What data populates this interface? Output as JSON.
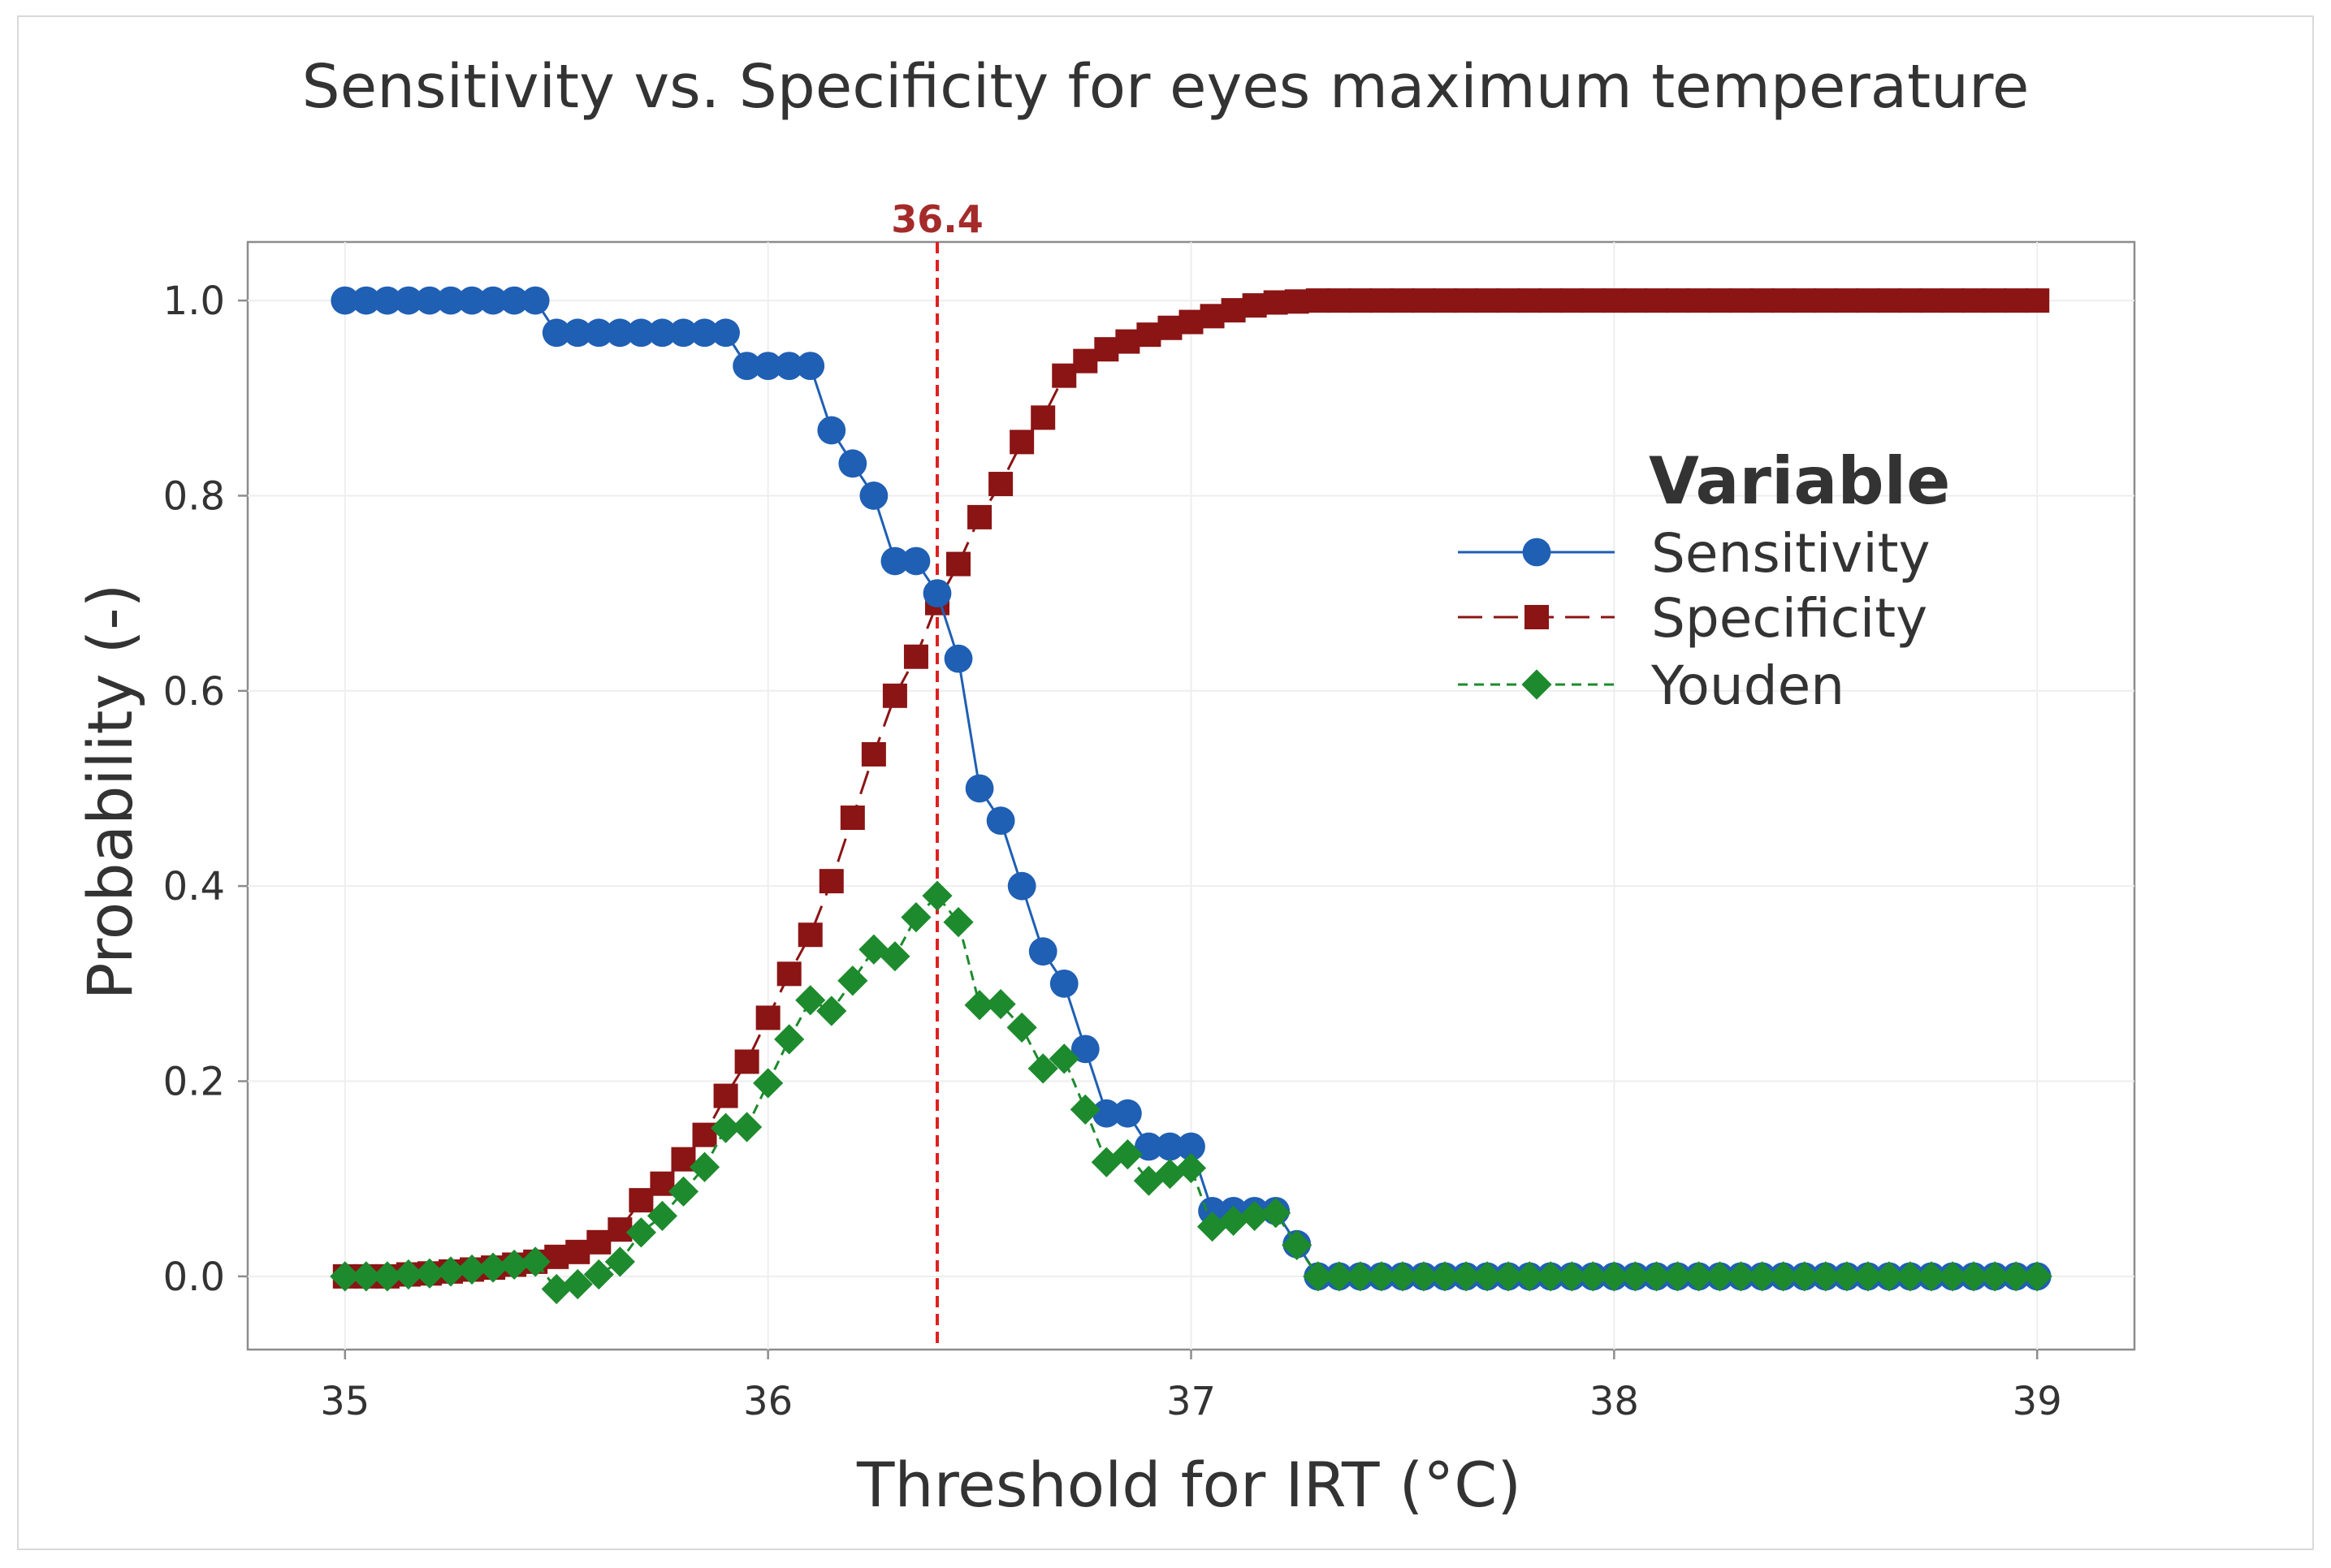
{
  "colors": {
    "sensitivity": "#1f5fb4",
    "specificity": "#8b1414",
    "youden": "#1e8a2e",
    "cutoff": "#e02020",
    "cutoff_label": "#a52a2a",
    "text": "#333333",
    "axis": "#8c8c8c",
    "grid": "#eeeeee"
  },
  "chart_data": {
    "type": "line",
    "title": "Sensitivity vs. Specificity for eyes maximum temperature",
    "xlabel": "Threshold for IRT (°C)",
    "ylabel": "Probability (-)",
    "xlim": [
      34.77,
      39.23
    ],
    "ylim": [
      -0.075,
      1.06
    ],
    "xticks": [
      35,
      36,
      37,
      38,
      39
    ],
    "xtick_labels": [
      "35",
      "36",
      "37",
      "38",
      "39"
    ],
    "yticks": [
      0.0,
      0.2,
      0.4,
      0.6,
      0.8,
      1.0
    ],
    "ytick_labels": [
      "0.0",
      "0.2",
      "0.4",
      "0.6",
      "0.8",
      "1.0"
    ],
    "grid": true,
    "legend": {
      "title": "Variable",
      "position": "right"
    },
    "reference_line": {
      "x": 36.4,
      "label": "36.4"
    },
    "series": [
      {
        "name": "Sensitivity",
        "marker": "circle",
        "line": "solid",
        "x": [
          35.0,
          35.05,
          35.1,
          35.15,
          35.2,
          35.25,
          35.3,
          35.35,
          35.4,
          35.45,
          35.5,
          35.55,
          35.6,
          35.65,
          35.7,
          35.75,
          35.8,
          35.85,
          35.9,
          35.95,
          36.0,
          36.05,
          36.1,
          36.15,
          36.2,
          36.25,
          36.3,
          36.35,
          36.4,
          36.45,
          36.5,
          36.55,
          36.6,
          36.65,
          36.7,
          36.75,
          36.8,
          36.85,
          36.9,
          36.95,
          37.0,
          37.05,
          37.1,
          37.15,
          37.2,
          37.25,
          37.3,
          37.35,
          37.4,
          37.45,
          37.5,
          37.55,
          37.6,
          37.65,
          37.7,
          37.75,
          37.8,
          37.85,
          37.9,
          37.95,
          38.0,
          38.05,
          38.1,
          38.15,
          38.2,
          38.25,
          38.3,
          38.35,
          38.4,
          38.45,
          38.5,
          38.55,
          38.6,
          38.65,
          38.7,
          38.75,
          38.8,
          38.85,
          38.9,
          38.95,
          39.0
        ],
        "values": [
          1.0,
          1.0,
          1.0,
          1.0,
          1.0,
          1.0,
          1.0,
          1.0,
          1.0,
          1.0,
          0.967,
          0.967,
          0.967,
          0.967,
          0.967,
          0.967,
          0.967,
          0.967,
          0.967,
          0.933,
          0.933,
          0.933,
          0.933,
          0.867,
          0.833,
          0.8,
          0.733,
          0.733,
          0.7,
          0.633,
          0.5,
          0.467,
          0.4,
          0.333,
          0.3,
          0.233,
          0.167,
          0.167,
          0.133,
          0.133,
          0.133,
          0.067,
          0.067,
          0.067,
          0.067,
          0.033,
          0.0,
          0.0,
          0.0,
          0.0,
          0.0,
          0.0,
          0.0,
          0.0,
          0.0,
          0.0,
          0.0,
          0.0,
          0.0,
          0.0,
          0.0,
          0.0,
          0.0,
          0.0,
          0.0,
          0.0,
          0.0,
          0.0,
          0.0,
          0.0,
          0.0,
          0.0,
          0.0,
          0.0,
          0.0,
          0.0,
          0.0,
          0.0,
          0.0,
          0.0,
          0.0
        ]
      },
      {
        "name": "Specificity",
        "marker": "square",
        "line": "long-dash",
        "x": [
          35.0,
          35.05,
          35.1,
          35.15,
          35.2,
          35.25,
          35.3,
          35.35,
          35.4,
          35.45,
          35.5,
          35.55,
          35.6,
          35.65,
          35.7,
          35.75,
          35.8,
          35.85,
          35.9,
          35.95,
          36.0,
          36.05,
          36.1,
          36.15,
          36.2,
          36.25,
          36.3,
          36.35,
          36.4,
          36.45,
          36.5,
          36.55,
          36.6,
          36.65,
          36.7,
          36.75,
          36.8,
          36.85,
          36.9,
          36.95,
          37.0,
          37.05,
          37.1,
          37.15,
          37.2,
          37.25,
          37.3,
          37.35,
          37.4,
          37.45,
          37.5,
          37.55,
          37.6,
          37.65,
          37.7,
          37.75,
          37.8,
          37.85,
          37.9,
          37.95,
          38.0,
          38.05,
          38.1,
          38.15,
          38.2,
          38.25,
          38.3,
          38.35,
          38.4,
          38.45,
          38.5,
          38.55,
          38.6,
          38.65,
          38.7,
          38.75,
          38.8,
          38.85,
          38.9,
          38.95,
          39.0
        ],
        "values": [
          0.0,
          0.0,
          0.0,
          0.002,
          0.003,
          0.005,
          0.007,
          0.009,
          0.012,
          0.015,
          0.02,
          0.025,
          0.035,
          0.048,
          0.078,
          0.095,
          0.12,
          0.145,
          0.185,
          0.22,
          0.265,
          0.31,
          0.35,
          0.405,
          0.47,
          0.535,
          0.595,
          0.635,
          0.69,
          0.73,
          0.778,
          0.812,
          0.855,
          0.88,
          0.923,
          0.938,
          0.95,
          0.958,
          0.965,
          0.972,
          0.978,
          0.984,
          0.99,
          0.995,
          0.998,
          0.999,
          1.0,
          1.0,
          1.0,
          1.0,
          1.0,
          1.0,
          1.0,
          1.0,
          1.0,
          1.0,
          1.0,
          1.0,
          1.0,
          1.0,
          1.0,
          1.0,
          1.0,
          1.0,
          1.0,
          1.0,
          1.0,
          1.0,
          1.0,
          1.0,
          1.0,
          1.0,
          1.0,
          1.0,
          1.0,
          1.0,
          1.0,
          1.0,
          1.0,
          1.0,
          1.0
        ]
      },
      {
        "name": "Youden",
        "marker": "diamond",
        "line": "short-dash",
        "x": [
          35.0,
          35.05,
          35.1,
          35.15,
          35.2,
          35.25,
          35.3,
          35.35,
          35.4,
          35.45,
          35.5,
          35.55,
          35.6,
          35.65,
          35.7,
          35.75,
          35.8,
          35.85,
          35.9,
          35.95,
          36.0,
          36.05,
          36.1,
          36.15,
          36.2,
          36.25,
          36.3,
          36.35,
          36.4,
          36.45,
          36.5,
          36.55,
          36.6,
          36.65,
          36.7,
          36.75,
          36.8,
          36.85,
          36.9,
          36.95,
          37.0,
          37.05,
          37.1,
          37.15,
          37.2,
          37.25,
          37.3,
          37.35,
          37.4,
          37.45,
          37.5,
          37.55,
          37.6,
          37.65,
          37.7,
          37.75,
          37.8,
          37.85,
          37.9,
          37.95,
          38.0,
          38.05,
          38.1,
          38.15,
          38.2,
          38.25,
          38.3,
          38.35,
          38.4,
          38.45,
          38.5,
          38.55,
          38.6,
          38.65,
          38.7,
          38.75,
          38.8,
          38.85,
          38.9,
          38.95,
          39.0
        ],
        "values": [
          0.0,
          0.0,
          0.0,
          0.002,
          0.003,
          0.005,
          0.007,
          0.009,
          0.012,
          0.015,
          -0.013,
          -0.008,
          0.002,
          0.015,
          0.045,
          0.062,
          0.087,
          0.112,
          0.152,
          0.153,
          0.198,
          0.243,
          0.283,
          0.272,
          0.303,
          0.335,
          0.328,
          0.368,
          0.39,
          0.363,
          0.278,
          0.279,
          0.255,
          0.213,
          0.223,
          0.171,
          0.117,
          0.125,
          0.098,
          0.105,
          0.111,
          0.051,
          0.057,
          0.062,
          0.065,
          0.032,
          0.0,
          0.0,
          0.0,
          0.0,
          0.0,
          0.0,
          0.0,
          0.0,
          0.0,
          0.0,
          0.0,
          0.0,
          0.0,
          0.0,
          0.0,
          0.0,
          0.0,
          0.0,
          0.0,
          0.0,
          0.0,
          0.0,
          0.0,
          0.0,
          0.0,
          0.0,
          0.0,
          0.0,
          0.0,
          0.0,
          0.0,
          0.0,
          0.0,
          0.0,
          0.0
        ]
      }
    ]
  }
}
